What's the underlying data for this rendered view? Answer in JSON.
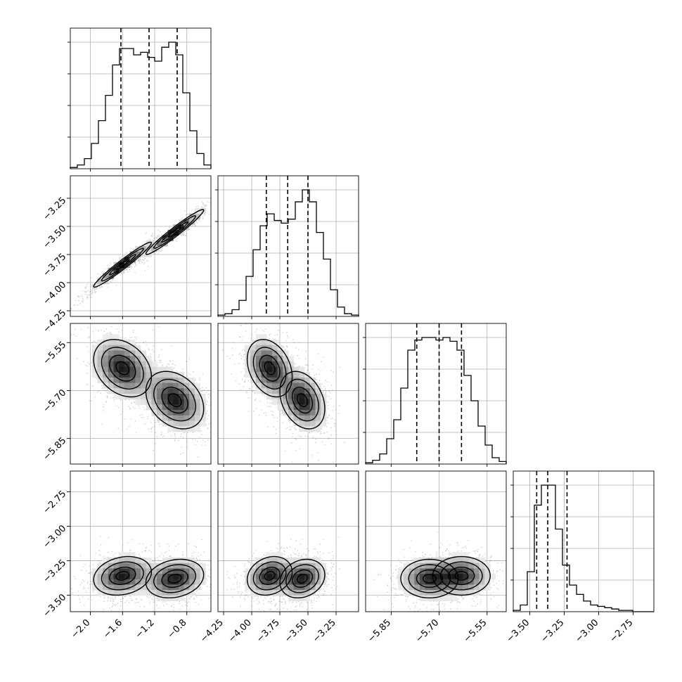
{
  "chart_data": {
    "type": "corner",
    "title": "",
    "parameters": 4,
    "grid": true,
    "colors": {
      "line": "#000000",
      "points": "#666666",
      "grid": "#b0b0b0"
    },
    "ranges": [
      [
        -2.25,
        -0.5
      ],
      [
        -4.3,
        -3.05
      ],
      [
        -5.93,
        -5.49
      ],
      [
        -3.62,
        -2.6
      ]
    ],
    "ticks": [
      [
        -2.0,
        -1.6,
        -1.2,
        -0.8
      ],
      [
        -4.25,
        -4.0,
        -3.75,
        -3.5,
        -3.25
      ],
      [
        -5.85,
        -5.7,
        -5.55
      ],
      [
        -3.5,
        -3.25,
        -3.0,
        -2.75
      ]
    ],
    "tick_labels": [
      [
        "−2.0",
        "−1.6",
        "−1.2",
        "−0.8"
      ],
      [
        "−4.25",
        "−4.00",
        "−3.75",
        "−3.50",
        "−3.25"
      ],
      [
        "−5.85",
        "−5.70",
        "−5.55"
      ],
      [
        "−3.50",
        "−3.25",
        "−3.00",
        "−2.75"
      ]
    ],
    "quantiles": [
      [
        -1.62,
        -1.27,
        -0.92
      ],
      [
        -3.87,
        -3.68,
        -3.5
      ],
      [
        -5.77,
        -5.7,
        -5.63
      ],
      [
        -3.45,
        -3.37,
        -3.23
      ]
    ],
    "histograms": [
      [
        0.01,
        0.03,
        0.08,
        0.2,
        0.38,
        0.58,
        0.82,
        0.95,
        0.95,
        0.9,
        0.92,
        0.88,
        0.85,
        0.96,
        1.0,
        0.9,
        0.6,
        0.3,
        0.12,
        0.03
      ],
      [
        0.01,
        0.02,
        0.05,
        0.12,
        0.3,
        0.5,
        0.68,
        0.77,
        0.72,
        0.7,
        0.73,
        0.86,
        0.95,
        0.86,
        0.63,
        0.43,
        0.2,
        0.07,
        0.02,
        0.01
      ],
      [
        0.01,
        0.03,
        0.08,
        0.2,
        0.35,
        0.6,
        0.9,
        0.98,
        1.0,
        1.0,
        0.98,
        1.0,
        0.97,
        0.9,
        0.7,
        0.5,
        0.3,
        0.15,
        0.05,
        0.02
      ],
      [
        0.01,
        0.05,
        0.3,
        0.8,
        0.95,
        0.95,
        0.62,
        0.35,
        0.2,
        0.13,
        0.08,
        0.05,
        0.04,
        0.03,
        0.02,
        0.01,
        0.01,
        0.0,
        0.0,
        0.0
      ]
    ],
    "modes": [
      {
        "p": [
          -1.6,
          -3.84,
          -5.63,
          -3.36
        ],
        "w": 0.5
      },
      {
        "p": [
          -0.95,
          -3.55,
          -5.73,
          -3.38
        ],
        "w": 0.5
      }
    ],
    "spreads": [
      0.18,
      0.1,
      0.045,
      0.07
    ],
    "pair_correlation": {
      "1-0": 0.97,
      "2-0": -0.3,
      "2-1": -0.3,
      "3-0": 0.2,
      "3-1": 0.2,
      "3-2": 0.0
    },
    "contour_scales": [
      0.45,
      0.9,
      1.45,
      2.0
    ]
  }
}
